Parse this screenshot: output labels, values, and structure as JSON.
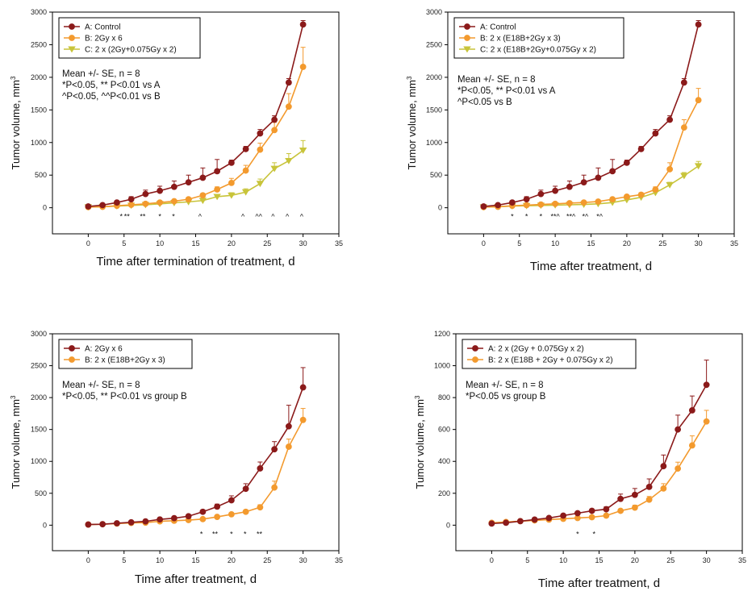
{
  "colors": {
    "series_a": "#8b1a1a",
    "series_b": "#f39a2e",
    "series_c": "#c8c43a",
    "axis": "#000000"
  },
  "chart_data": [
    {
      "type": "line",
      "xlabel": "Time after termination of treatment, d",
      "ylabel": "Tumor volume, mm",
      "ylabel_sup": "3",
      "xlim": [
        -5,
        35
      ],
      "ylim": [
        -400,
        3000
      ],
      "xticks": [
        0,
        5,
        10,
        15,
        20,
        25,
        30,
        35
      ],
      "yticks": [
        0,
        500,
        1000,
        1500,
        2000,
        2500,
        3000
      ],
      "legend": "top-left",
      "x": [
        0,
        2,
        4,
        6,
        8,
        10,
        12,
        14,
        16,
        18,
        20,
        22,
        24,
        26,
        28,
        30
      ],
      "series": [
        {
          "name": "A: Control",
          "marker": "circle",
          "color": "#8b1a1a",
          "values": [
            20,
            40,
            80,
            130,
            210,
            260,
            320,
            390,
            460,
            560,
            690,
            900,
            1140,
            1350,
            1920,
            2810
          ],
          "errors": [
            10,
            15,
            25,
            40,
            60,
            70,
            90,
            110,
            150,
            180,
            40,
            40,
            60,
            60,
            60,
            60
          ]
        },
        {
          "name": "B: 2Gy x 6",
          "marker": "circle",
          "color": "#f39a2e",
          "values": [
            10,
            15,
            30,
            45,
            60,
            80,
            100,
            130,
            190,
            280,
            380,
            570,
            890,
            1190,
            1550,
            2160
          ],
          "errors": [
            5,
            5,
            10,
            10,
            15,
            15,
            20,
            25,
            30,
            40,
            70,
            80,
            100,
            120,
            200,
            300
          ]
        },
        {
          "name": "C: 2 x (2Gy+0.075Gy x 2)",
          "marker": "triangle-down",
          "color": "#c8c43a",
          "values": [
            10,
            15,
            25,
            35,
            45,
            60,
            75,
            90,
            110,
            170,
            190,
            240,
            370,
            600,
            720,
            880
          ],
          "errors": [
            5,
            5,
            5,
            10,
            10,
            10,
            15,
            20,
            25,
            30,
            40,
            50,
            70,
            90,
            110,
            150
          ]
        }
      ],
      "annotations": [
        {
          "x": 4.6,
          "text": "*"
        },
        {
          "x": 5.4,
          "text": "**"
        },
        {
          "x": 7.6,
          "text": "**"
        },
        {
          "x": 10,
          "text": "*"
        },
        {
          "x": 11.9,
          "text": "*"
        },
        {
          "x": 15.6,
          "text": "^"
        },
        {
          "x": 21.6,
          "text": "^"
        },
        {
          "x": 23.8,
          "text": "^^"
        },
        {
          "x": 25.8,
          "text": "^"
        },
        {
          "x": 27.8,
          "text": "^"
        },
        {
          "x": 29.8,
          "text": "^"
        }
      ],
      "notes": [
        "Mean +/- SE, n = 8",
        "*P<0.05, ** P<0.01 vs A",
        "^P<0.05, ^^P<0.01 vs B"
      ]
    },
    {
      "type": "line",
      "xlabel": "Time after treatment, d",
      "ylabel": "Tumor volume, mm",
      "ylabel_sup": "3",
      "xlim": [
        -5,
        35
      ],
      "ylim": [
        -400,
        3000
      ],
      "xticks": [
        0,
        5,
        10,
        15,
        20,
        25,
        30,
        35
      ],
      "yticks": [
        0,
        500,
        1000,
        1500,
        2000,
        2500,
        3000
      ],
      "legend": "top-left",
      "x": [
        0,
        2,
        4,
        6,
        8,
        10,
        12,
        14,
        16,
        18,
        20,
        22,
        24,
        26,
        28,
        30
      ],
      "series": [
        {
          "name": "A: Control",
          "marker": "circle",
          "color": "#8b1a1a",
          "values": [
            20,
            40,
            80,
            130,
            210,
            260,
            320,
            390,
            460,
            560,
            690,
            900,
            1140,
            1350,
            1920,
            2810
          ],
          "errors": [
            10,
            15,
            25,
            40,
            60,
            70,
            90,
            110,
            150,
            180,
            40,
            40,
            60,
            60,
            60,
            60
          ]
        },
        {
          "name": "B: 2 x (E18B+2Gy x 3)",
          "marker": "circle",
          "color": "#f39a2e",
          "values": [
            10,
            15,
            30,
            40,
            50,
            60,
            70,
            80,
            95,
            130,
            170,
            200,
            280,
            590,
            1230,
            1650
          ],
          "errors": [
            5,
            5,
            5,
            10,
            10,
            10,
            15,
            15,
            15,
            20,
            25,
            30,
            40,
            100,
            120,
            180
          ]
        },
        {
          "name": "C: 2 x (E18B+2Gy+0.075Gy x 2)",
          "marker": "triangle-down",
          "color": "#c8c43a",
          "values": [
            10,
            15,
            25,
            30,
            35,
            40,
            45,
            50,
            60,
            80,
            120,
            160,
            230,
            350,
            490,
            640
          ],
          "errors": [
            5,
            5,
            5,
            5,
            5,
            5,
            10,
            10,
            10,
            15,
            20,
            25,
            30,
            40,
            50,
            70
          ]
        }
      ],
      "annotations": [
        {
          "x": 4,
          "text": "*"
        },
        {
          "x": 6,
          "text": "*"
        },
        {
          "x": 8,
          "text": "*"
        },
        {
          "x": 10,
          "text": "**^"
        },
        {
          "x": 12.2,
          "text": "**^"
        },
        {
          "x": 14.2,
          "text": "*^"
        },
        {
          "x": 16.2,
          "text": "*^"
        }
      ],
      "notes": [
        "Mean +/- SE, n = 8",
        "*P<0.05, ** P<0.01 vs A",
        "^P<0.05 vs B"
      ]
    },
    {
      "type": "line",
      "xlabel": "Time after treatment, d",
      "ylabel": "Tumor volume, mm",
      "ylabel_sup": "3",
      "xlim": [
        -5,
        35
      ],
      "ylim": [
        -400,
        3000
      ],
      "xticks": [
        0,
        5,
        10,
        15,
        20,
        25,
        30,
        35
      ],
      "yticks": [
        0,
        500,
        1000,
        1500,
        2000,
        2500,
        3000
      ],
      "legend": "top-left",
      "x": [
        0,
        2,
        4,
        6,
        8,
        10,
        12,
        14,
        16,
        18,
        20,
        22,
        24,
        26,
        28,
        30
      ],
      "series": [
        {
          "name": "A: 2Gy x 6",
          "marker": "circle",
          "color": "#8b1a1a",
          "values": [
            10,
            15,
            30,
            45,
            60,
            90,
            110,
            140,
            210,
            290,
            390,
            570,
            890,
            1190,
            1550,
            2160
          ],
          "errors": [
            5,
            5,
            10,
            10,
            15,
            15,
            20,
            25,
            30,
            40,
            70,
            80,
            100,
            120,
            330,
            310
          ]
        },
        {
          "name": "B: 2 x (E18B+2Gy x 3)",
          "marker": "circle",
          "color": "#f39a2e",
          "values": [
            10,
            15,
            25,
            35,
            40,
            60,
            70,
            80,
            95,
            130,
            170,
            210,
            280,
            590,
            1230,
            1650
          ],
          "errors": [
            5,
            5,
            5,
            10,
            10,
            10,
            15,
            15,
            15,
            20,
            25,
            30,
            40,
            100,
            120,
            180
          ]
        }
      ],
      "annotations": [
        {
          "x": 15.8,
          "text": "*"
        },
        {
          "x": 17.7,
          "text": "**"
        },
        {
          "x": 20,
          "text": "*"
        },
        {
          "x": 21.9,
          "text": "*"
        },
        {
          "x": 23.9,
          "text": "**"
        }
      ],
      "notes": [
        "Mean +/- SE, n = 8",
        "*P<0.05, ** P<0.01 vs group B"
      ]
    },
    {
      "type": "line",
      "xlabel": "Time after treatment, d",
      "ylabel": "Tumor volume, mm",
      "ylabel_sup": "3",
      "xlim": [
        -5,
        35
      ],
      "ylim": [
        -160,
        1200
      ],
      "xticks": [
        0,
        5,
        10,
        15,
        20,
        25,
        30,
        35
      ],
      "yticks": [
        0,
        200,
        400,
        600,
        800,
        1000,
        1200
      ],
      "legend": "top-left",
      "x": [
        0,
        2,
        4,
        6,
        8,
        10,
        12,
        14,
        16,
        18,
        20,
        22,
        24,
        26,
        28,
        30
      ],
      "series": [
        {
          "name": "A: 2 x (2Gy + 0.075Gy x 2)",
          "marker": "circle",
          "color": "#8b1a1a",
          "values": [
            10,
            15,
            25,
            35,
            45,
            60,
            75,
            90,
            100,
            165,
            190,
            240,
            370,
            600,
            720,
            880
          ],
          "errors": [
            5,
            5,
            5,
            5,
            5,
            10,
            10,
            10,
            15,
            30,
            40,
            50,
            70,
            90,
            90,
            155
          ]
        },
        {
          "name": "B: 2 x (E18B + 2Gy + 0.075Gy x 2)",
          "marker": "circle",
          "color": "#f39a2e",
          "values": [
            15,
            20,
            25,
            30,
            35,
            40,
            45,
            50,
            60,
            90,
            110,
            160,
            230,
            355,
            500,
            650
          ],
          "errors": [
            5,
            5,
            5,
            5,
            5,
            5,
            5,
            10,
            10,
            10,
            15,
            20,
            30,
            40,
            60,
            70
          ]
        }
      ],
      "annotations": [
        {
          "x": 12,
          "text": "*"
        },
        {
          "x": 14.3,
          "text": "*"
        }
      ],
      "notes": [
        "Mean +/- SE, n = 8",
        "*P<0.05 vs group B"
      ]
    }
  ]
}
